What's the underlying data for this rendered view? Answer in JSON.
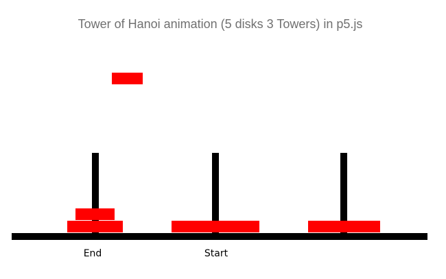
{
  "page": {
    "title": "Tower of Hanoi animation (5 disks 3 Towers) in p5.js"
  },
  "colors": {
    "disk": "#ff0000",
    "pole": "#000000",
    "base": "#000000",
    "title_text": "#707070",
    "label_text": "#000000"
  },
  "towers": [
    {
      "id": "tower-1",
      "label": "End",
      "disks": [
        "disk-b",
        "disk-a"
      ]
    },
    {
      "id": "tower-2",
      "label": "Start",
      "disks": [
        "disk-d"
      ]
    },
    {
      "id": "tower-3",
      "label": "",
      "disks": [
        "disk-c"
      ]
    }
  ],
  "moving_disk": {
    "id": "disk-e",
    "state": "lifted"
  }
}
